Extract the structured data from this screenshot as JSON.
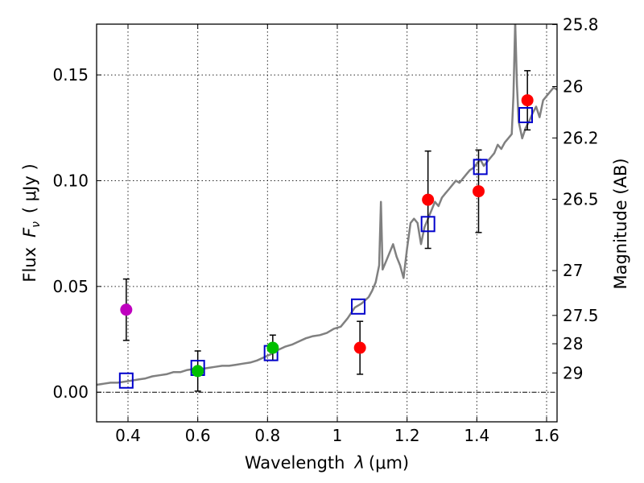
{
  "chart_data": {
    "type": "scatter",
    "xlabel_prefix": "Wavelength",
    "xlabel_symbol": "λ",
    "xlabel_unit": "(μm)",
    "ylabel_prefix": "Flux",
    "ylabel_symbol": "F",
    "ylabel_subscript": "ν",
    "ylabel_unit": "( μJy )",
    "y2label": "Magnitude (AB)",
    "xlim": [
      0.31,
      1.63
    ],
    "ylim": [
      -0.014,
      0.174
    ],
    "grid": true,
    "x_ticks": [
      {
        "value": 0.4,
        "label": "0.4"
      },
      {
        "value": 0.6,
        "label": "0.6"
      },
      {
        "value": 0.8,
        "label": "0.8"
      },
      {
        "value": 1.0,
        "label": "1"
      },
      {
        "value": 1.2,
        "label": "1.2"
      },
      {
        "value": 1.4,
        "label": "1.4"
      },
      {
        "value": 1.6,
        "label": "1.6"
      }
    ],
    "y_ticks": [
      {
        "value": 0.0,
        "label": "0.00"
      },
      {
        "value": 0.05,
        "label": "0.05"
      },
      {
        "value": 0.1,
        "label": "0.10"
      },
      {
        "value": 0.15,
        "label": "0.15"
      }
    ],
    "y2_ticks": [
      {
        "flux": 0.1738,
        "label": "25.8"
      },
      {
        "flux": 0.1445,
        "label": "26"
      },
      {
        "flux": 0.1202,
        "label": "26.2"
      },
      {
        "flux": 0.0912,
        "label": "26.5"
      },
      {
        "flux": 0.0575,
        "label": "27"
      },
      {
        "flux": 0.0363,
        "label": "27.5"
      },
      {
        "flux": 0.0229,
        "label": "28"
      },
      {
        "flux": 0.0091,
        "label": "29"
      }
    ],
    "observed": [
      {
        "x": 0.395,
        "y": 0.039,
        "err": 0.0145,
        "color": "#bf00bf"
      },
      {
        "x": 0.6,
        "y": 0.01,
        "err": 0.0095,
        "color": "#00bf00"
      },
      {
        "x": 0.815,
        "y": 0.021,
        "err": 0.006,
        "color": "#00bf00"
      },
      {
        "x": 1.065,
        "y": 0.021,
        "err": 0.0125,
        "color": "#ff0000"
      },
      {
        "x": 1.26,
        "y": 0.091,
        "err": 0.023,
        "color": "#ff0000"
      },
      {
        "x": 1.405,
        "y": 0.095,
        "err": 0.0195,
        "color": "#ff0000"
      },
      {
        "x": 1.545,
        "y": 0.138,
        "err": 0.014,
        "color": "#ff0000"
      }
    ],
    "model_points": {
      "color": "#0000cc",
      "x": [
        0.395,
        0.6,
        0.81,
        1.06,
        1.26,
        1.41,
        1.54
      ],
      "y": [
        0.0055,
        0.0115,
        0.0185,
        0.0405,
        0.0795,
        0.1065,
        0.131
      ]
    },
    "template": {
      "color": "#808080",
      "x": [
        0.31,
        0.33,
        0.35,
        0.37,
        0.39,
        0.41,
        0.43,
        0.45,
        0.47,
        0.49,
        0.51,
        0.53,
        0.55,
        0.57,
        0.59,
        0.61,
        0.63,
        0.65,
        0.67,
        0.69,
        0.71,
        0.73,
        0.75,
        0.77,
        0.79,
        0.81,
        0.83,
        0.85,
        0.87,
        0.89,
        0.91,
        0.93,
        0.95,
        0.97,
        0.99,
        1.01,
        1.03,
        1.05,
        1.07,
        1.09,
        1.1,
        1.11,
        1.12,
        1.125,
        1.13,
        1.14,
        1.15,
        1.16,
        1.17,
        1.18,
        1.19,
        1.2,
        1.21,
        1.22,
        1.23,
        1.24,
        1.25,
        1.26,
        1.27,
        1.28,
        1.29,
        1.3,
        1.31,
        1.32,
        1.33,
        1.34,
        1.35,
        1.36,
        1.37,
        1.38,
        1.39,
        1.4,
        1.41,
        1.42,
        1.43,
        1.44,
        1.45,
        1.46,
        1.47,
        1.48,
        1.49,
        1.5,
        1.505,
        1.51,
        1.515,
        1.52,
        1.53,
        1.54,
        1.55,
        1.56,
        1.57,
        1.58,
        1.59,
        1.6,
        1.61,
        1.62,
        1.63
      ],
      "y": [
        0.0035,
        0.004,
        0.0045,
        0.0045,
        0.005,
        0.0055,
        0.006,
        0.0065,
        0.0075,
        0.008,
        0.0085,
        0.0095,
        0.0095,
        0.0105,
        0.011,
        0.011,
        0.0115,
        0.012,
        0.0125,
        0.0125,
        0.013,
        0.0135,
        0.014,
        0.015,
        0.0165,
        0.018,
        0.02,
        0.0215,
        0.0225,
        0.024,
        0.0255,
        0.0265,
        0.027,
        0.028,
        0.03,
        0.031,
        0.035,
        0.04,
        0.042,
        0.045,
        0.048,
        0.052,
        0.06,
        0.09,
        0.058,
        0.062,
        0.066,
        0.07,
        0.064,
        0.06,
        0.054,
        0.068,
        0.08,
        0.082,
        0.08,
        0.07,
        0.078,
        0.082,
        0.086,
        0.09,
        0.088,
        0.092,
        0.094,
        0.096,
        0.098,
        0.1,
        0.099,
        0.101,
        0.103,
        0.105,
        0.106,
        0.108,
        0.11,
        0.107,
        0.109,
        0.111,
        0.113,
        0.117,
        0.115,
        0.118,
        0.12,
        0.122,
        0.14,
        0.175,
        0.145,
        0.128,
        0.12,
        0.125,
        0.128,
        0.132,
        0.135,
        0.13,
        0.138,
        0.14,
        0.142,
        0.144,
        0.143
      ]
    }
  }
}
